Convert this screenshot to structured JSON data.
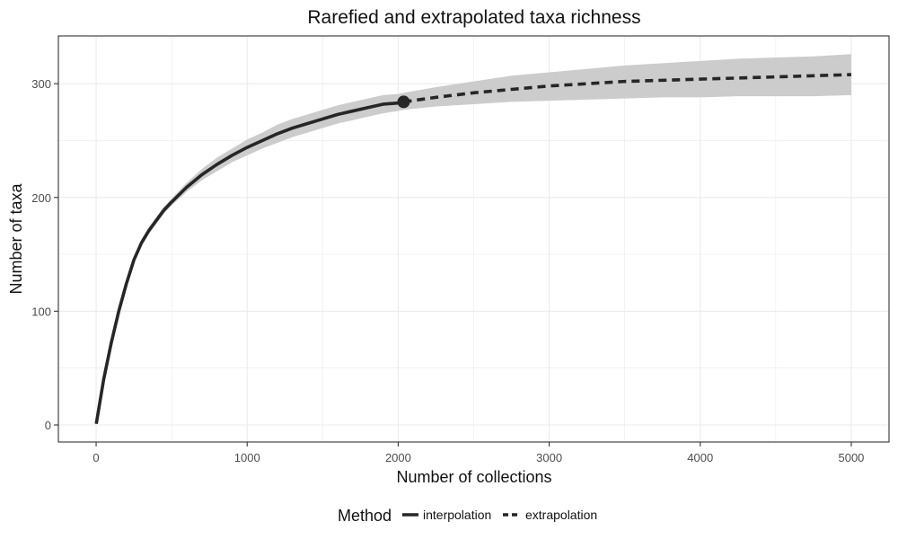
{
  "chart_data": {
    "type": "line",
    "title": "Rarefied and extrapolated taxa richness",
    "xlabel": "Number of collections",
    "ylabel": "Number of taxa",
    "xlim": [
      -250,
      5250
    ],
    "ylim": [
      -15,
      342
    ],
    "x_ticks": [
      0,
      1000,
      2000,
      3000,
      4000,
      5000
    ],
    "x_tick_labels": [
      "0",
      "1000",
      "2000",
      "3000",
      "4000",
      "5000"
    ],
    "y_ticks": [
      0,
      100,
      200,
      300
    ],
    "y_tick_labels": [
      "0",
      "100",
      "200",
      "300"
    ],
    "grid": true,
    "legend": {
      "position": "bottom",
      "title": "Method",
      "entries": [
        {
          "label": "interpolation",
          "style": "solid"
        },
        {
          "label": "extrapolation",
          "style": "dashed"
        }
      ]
    },
    "colors": {
      "line": "#262626",
      "ribbon": "#cccccc",
      "grid": "#ebebeb",
      "panel_border": "#333333"
    },
    "observed_point": {
      "x": 2036,
      "y": 284
    },
    "series": [
      {
        "name": "interpolation",
        "style": "solid",
        "x": [
          1,
          50,
          100,
          150,
          200,
          250,
          300,
          350,
          400,
          450,
          500,
          600,
          700,
          800,
          900,
          1000,
          1100,
          1200,
          1300,
          1400,
          1500,
          1600,
          1700,
          1800,
          1900,
          2000,
          2036
        ],
        "y": [
          1,
          40,
          72,
          100,
          124,
          145,
          160,
          171,
          180,
          189,
          196,
          209,
          220,
          229,
          237,
          244,
          250,
          256,
          261,
          265,
          269,
          273,
          276,
          279,
          282,
          283,
          284
        ],
        "lower": [
          1,
          39,
          70,
          97,
          121,
          142,
          157,
          168,
          177,
          186,
          193,
          205,
          215,
          223,
          231,
          237,
          243,
          248,
          253,
          257,
          261,
          265,
          268,
          271,
          274,
          276,
          277
        ],
        "upper": [
          1,
          41,
          74,
          103,
          127,
          148,
          163,
          174,
          183,
          192,
          199,
          213,
          225,
          235,
          243,
          251,
          257,
          264,
          269,
          273,
          277,
          281,
          284,
          287,
          290,
          291,
          292
        ]
      },
      {
        "name": "extrapolation",
        "style": "dashed",
        "x": [
          2036,
          2250,
          2500,
          2750,
          3000,
          3250,
          3500,
          3750,
          4000,
          4250,
          4500,
          4750,
          5000
        ],
        "y": [
          284,
          288,
          292,
          295,
          298,
          300,
          302,
          303,
          304,
          305,
          306,
          307,
          308
        ],
        "lower": [
          277,
          280,
          282,
          284,
          285,
          286,
          287,
          288,
          288,
          289,
          289,
          289,
          290
        ],
        "upper": [
          292,
          297,
          302,
          307,
          310,
          313,
          316,
          318,
          320,
          322,
          323,
          324,
          326
        ]
      }
    ]
  }
}
